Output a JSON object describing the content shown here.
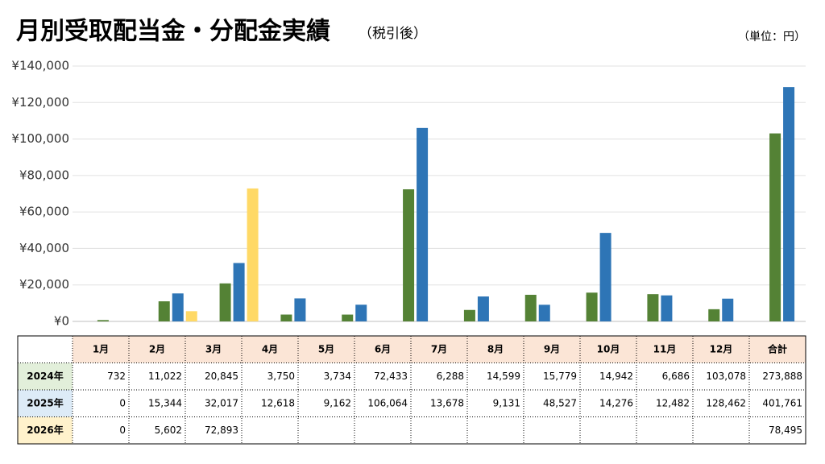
{
  "chart_data": {
    "type": "bar",
    "title": "月別受取配当金・分配金実績",
    "subtitle": "（税引後）",
    "unit_note": "（単位：円）",
    "categories": [
      "1月",
      "2月",
      "3月",
      "4月",
      "5月",
      "6月",
      "7月",
      "8月",
      "9月",
      "10月",
      "11月",
      "12月"
    ],
    "total_label": "合計",
    "series": [
      {
        "name": "2024年",
        "color": "#548235",
        "values": [
          732,
          11022,
          20845,
          3750,
          3734,
          72433,
          6288,
          14599,
          15779,
          14942,
          6686,
          103078
        ],
        "value_labels": [
          "732",
          "11,022",
          "20,845",
          "3,750",
          "3,734",
          "72,433",
          "6,288",
          "14,599",
          "15,779",
          "14,942",
          "6,686",
          "103,078"
        ],
        "total": 273888,
        "total_label": "273,888"
      },
      {
        "name": "2025年",
        "color": "#2e75b6",
        "values": [
          0,
          15344,
          32017,
          12618,
          9162,
          106064,
          13678,
          9131,
          48527,
          14276,
          12482,
          128462
        ],
        "value_labels": [
          "0",
          "15,344",
          "32,017",
          "12,618",
          "9,162",
          "106,064",
          "13,678",
          "9,131",
          "48,527",
          "14,276",
          "12,482",
          "128,462"
        ],
        "total": 401761,
        "total_label": "401,761"
      },
      {
        "name": "2026年",
        "color": "#ffd966",
        "values": [
          0,
          5602,
          72893,
          null,
          null,
          null,
          null,
          null,
          null,
          null,
          null,
          null
        ],
        "value_labels": [
          "0",
          "5,602",
          "72,893",
          null,
          null,
          null,
          null,
          null,
          null,
          null,
          null,
          null
        ],
        "total": 78495,
        "total_label": "78,495"
      }
    ],
    "ylim": [
      0,
      140000
    ],
    "yticks": [
      {
        "value": 0,
        "label": "¥0"
      },
      {
        "value": 20000,
        "label": "¥20,000"
      },
      {
        "value": 40000,
        "label": "¥40,000"
      },
      {
        "value": 60000,
        "label": "¥60,000"
      },
      {
        "value": 80000,
        "label": "¥80,000"
      },
      {
        "value": 100000,
        "label": "¥100,000"
      },
      {
        "value": 120000,
        "label": "¥120,000"
      },
      {
        "value": 140000,
        "label": "¥140,000"
      }
    ],
    "grid": true
  }
}
